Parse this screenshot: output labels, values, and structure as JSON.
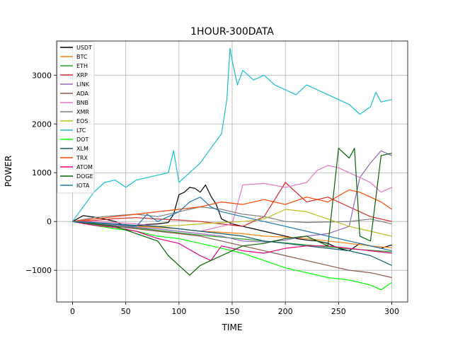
{
  "chart_data": {
    "type": "line",
    "title": "1HOUR-300DATA",
    "xlabel": "TIME",
    "ylabel": "POWER",
    "xlim": [
      -15,
      315
    ],
    "ylim": [
      -1650,
      3700
    ],
    "xticks": [
      0,
      50,
      100,
      150,
      200,
      250,
      300
    ],
    "yticks": [
      -1000,
      0,
      1000,
      2000,
      3000
    ],
    "grid": true,
    "legend_position": "upper-left",
    "series": [
      {
        "name": "USDT",
        "color": "#000000",
        "x": [
          0,
          10,
          20,
          30,
          40,
          50,
          60,
          70,
          80,
          90,
          95,
          100,
          105,
          110,
          115,
          120,
          125,
          130,
          135,
          140,
          150,
          160,
          170,
          180,
          190,
          200,
          210,
          220,
          230,
          240,
          250,
          260,
          270,
          280,
          290,
          300
        ],
        "y": [
          0,
          120,
          90,
          50,
          0,
          -100,
          -80,
          -60,
          -50,
          -20,
          150,
          550,
          600,
          700,
          680,
          600,
          750,
          520,
          350,
          50,
          -50,
          -100,
          -150,
          -200,
          -250,
          -300,
          -350,
          -380,
          -400,
          -450,
          -550,
          -600,
          -450,
          -500,
          -550,
          -480
        ]
      },
      {
        "name": "BTC",
        "color": "#ff7f0e",
        "x": [
          0,
          20,
          40,
          60,
          80,
          100,
          120,
          140,
          160,
          180,
          200,
          220,
          240,
          260,
          280,
          300
        ],
        "y": [
          0,
          -30,
          -80,
          -100,
          -120,
          -150,
          -200,
          -220,
          -250,
          -300,
          -320,
          -350,
          -400,
          -450,
          -500,
          -540
        ]
      },
      {
        "name": "ETH",
        "color": "#2ca02c",
        "x": [
          0,
          20,
          40,
          60,
          80,
          100,
          120,
          140,
          160,
          180,
          200,
          220,
          240,
          260,
          280,
          300
        ],
        "y": [
          0,
          -60,
          -100,
          -130,
          -180,
          -230,
          -280,
          -320,
          -360,
          -400,
          -440,
          -480,
          -520,
          -560,
          -590,
          -620
        ]
      },
      {
        "name": "XRP",
        "color": "#d62728",
        "x": [
          0,
          20,
          40,
          60,
          80,
          100,
          120,
          140,
          160,
          180,
          200,
          220,
          240,
          260,
          280,
          300
        ],
        "y": [
          0,
          20,
          60,
          80,
          50,
          30,
          0,
          -50,
          -100,
          100,
          800,
          400,
          500,
          300,
          100,
          0
        ]
      },
      {
        "name": "LINK",
        "color": "#9467bd",
        "x": [
          0,
          20,
          40,
          60,
          80,
          100,
          120,
          140,
          160,
          180,
          200,
          220,
          240,
          260,
          270,
          280,
          290,
          300
        ],
        "y": [
          0,
          -50,
          -80,
          -120,
          -150,
          -200,
          -250,
          -300,
          -400,
          -420,
          -380,
          -300,
          -250,
          -100,
          900,
          1200,
          1450,
          1350
        ]
      },
      {
        "name": "ADA",
        "color": "#8c564b",
        "x": [
          0,
          20,
          40,
          60,
          80,
          100,
          120,
          140,
          160,
          180,
          200,
          220,
          240,
          260,
          280,
          300
        ],
        "y": [
          0,
          -50,
          -100,
          -150,
          -200,
          -250,
          -300,
          -400,
          -500,
          -600,
          -700,
          -800,
          -900,
          -1000,
          -1050,
          -1150
        ]
      },
      {
        "name": "BNB",
        "color": "#e377c2",
        "x": [
          0,
          20,
          40,
          60,
          80,
          100,
          120,
          140,
          150,
          160,
          180,
          200,
          220,
          230,
          240,
          250,
          260,
          270,
          280,
          290,
          300
        ],
        "y": [
          0,
          0,
          -20,
          -50,
          -100,
          -150,
          -200,
          -100,
          -50,
          750,
          780,
          700,
          800,
          1050,
          1150,
          1100,
          1000,
          900,
          800,
          600,
          700
        ]
      },
      {
        "name": "XMR",
        "color": "#7f7f7f",
        "x": [
          0,
          20,
          40,
          60,
          80,
          100,
          120,
          140,
          160,
          180,
          200,
          220,
          240,
          260,
          280,
          300
        ],
        "y": [
          0,
          80,
          120,
          150,
          100,
          200,
          300,
          250,
          150,
          100,
          0,
          -20,
          -10,
          0,
          50,
          -50
        ]
      },
      {
        "name": "EOS",
        "color": "#bcbd22",
        "x": [
          0,
          20,
          40,
          60,
          80,
          100,
          120,
          140,
          160,
          180,
          200,
          220,
          240,
          260,
          280,
          300
        ],
        "y": [
          0,
          -30,
          -60,
          -90,
          -100,
          -80,
          -50,
          -20,
          0,
          50,
          250,
          200,
          50,
          -100,
          -200,
          -300
        ]
      },
      {
        "name": "LTC",
        "color": "#17becf",
        "x": [
          0,
          10,
          20,
          30,
          40,
          50,
          60,
          70,
          80,
          90,
          95,
          100,
          110,
          120,
          130,
          140,
          145,
          148,
          150,
          155,
          160,
          170,
          180,
          190,
          200,
          210,
          220,
          230,
          240,
          250,
          260,
          270,
          280,
          285,
          290,
          300
        ],
        "y": [
          0,
          300,
          600,
          800,
          850,
          700,
          850,
          900,
          950,
          1000,
          1450,
          800,
          1000,
          1200,
          1500,
          1800,
          2500,
          3550,
          3300,
          2800,
          3100,
          2900,
          3000,
          2800,
          2700,
          2600,
          2800,
          2700,
          2600,
          2500,
          2400,
          2200,
          2350,
          2650,
          2450,
          2500
        ]
      },
      {
        "name": "DOT",
        "color": "#00ff00",
        "x": [
          0,
          20,
          40,
          60,
          80,
          100,
          120,
          140,
          160,
          180,
          200,
          220,
          240,
          260,
          280,
          290,
          300
        ],
        "y": [
          0,
          -80,
          -150,
          -200,
          -300,
          -350,
          -450,
          -550,
          -650,
          -800,
          -950,
          -1050,
          -1150,
          -1200,
          -1300,
          -1400,
          -1250
        ]
      },
      {
        "name": "XLM",
        "color": "#0f5d6e",
        "x": [
          0,
          20,
          40,
          60,
          80,
          100,
          120,
          140,
          160,
          180,
          200,
          220,
          240,
          260,
          280,
          300
        ],
        "y": [
          0,
          -20,
          -50,
          -80,
          -100,
          -150,
          -200,
          -250,
          -300,
          -400,
          -450,
          -500,
          -550,
          -600,
          -700,
          -900
        ]
      },
      {
        "name": "TRX",
        "color": "#ff4500",
        "x": [
          0,
          20,
          40,
          60,
          80,
          100,
          120,
          140,
          160,
          180,
          200,
          220,
          240,
          260,
          270,
          280,
          290,
          300
        ],
        "y": [
          0,
          50,
          100,
          150,
          200,
          250,
          300,
          400,
          350,
          450,
          350,
          500,
          400,
          650,
          600,
          500,
          400,
          250
        ]
      },
      {
        "name": "ATOM",
        "color": "#e6007e",
        "x": [
          0,
          20,
          40,
          60,
          80,
          100,
          120,
          130,
          140,
          160,
          180,
          200,
          220,
          240,
          260,
          280,
          300
        ],
        "y": [
          0,
          -80,
          -120,
          -200,
          -350,
          -450,
          -700,
          -800,
          -500,
          -600,
          -650,
          -550,
          -500,
          -500,
          -550,
          -600,
          -650
        ]
      },
      {
        "name": "DOGE",
        "color": "#006400",
        "x": [
          0,
          20,
          40,
          60,
          80,
          90,
          100,
          110,
          120,
          130,
          140,
          150,
          160,
          180,
          200,
          220,
          240,
          250,
          260,
          265,
          270,
          280,
          290,
          300
        ],
        "y": [
          0,
          -50,
          -100,
          -250,
          -400,
          -700,
          -900,
          -1100,
          -900,
          -800,
          -700,
          -600,
          -500,
          -450,
          -350,
          -300,
          -500,
          1500,
          1300,
          1500,
          -300,
          -400,
          1350,
          1400
        ]
      },
      {
        "name": "IOTA",
        "color": "#1f77b4",
        "x": [
          0,
          20,
          40,
          60,
          70,
          80,
          90,
          100,
          110,
          120,
          130,
          140,
          160,
          180,
          200,
          220,
          240,
          260,
          280,
          300
        ],
        "y": [
          0,
          -30,
          -60,
          -100,
          150,
          0,
          100,
          200,
          400,
          500,
          300,
          200,
          100,
          0,
          -100,
          -200,
          -300,
          -400,
          -500,
          -600
        ]
      }
    ]
  }
}
